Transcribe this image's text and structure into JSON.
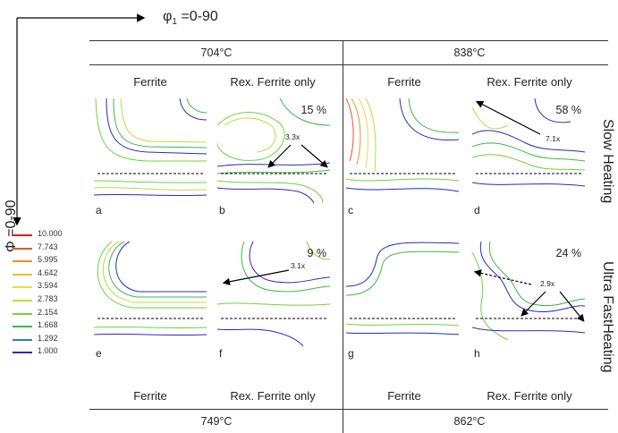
{
  "axes": {
    "phi1_label": "φ",
    "phi1_sub": "1",
    "phi1_range": " =0-90",
    "Phi_label": "Φ =0-90"
  },
  "top_temps": [
    "704°C",
    "838°C"
  ],
  "bottom_temps": [
    "749°C",
    "862°C"
  ],
  "column_headers": [
    "Ferrite",
    "Rex. Ferrite only",
    "Ferrite",
    "Rex. Ferrite only"
  ],
  "row_labels": [
    "Slow Heating",
    "Ultra FastHeating"
  ],
  "panels": [
    {
      "letter": "a",
      "percent": "",
      "ratio": ""
    },
    {
      "letter": "b",
      "percent": "15 %",
      "ratio": "3.3x"
    },
    {
      "letter": "c",
      "percent": "",
      "ratio": ""
    },
    {
      "letter": "d",
      "percent": "58 %",
      "ratio": "7.1x"
    },
    {
      "letter": "e",
      "percent": "",
      "ratio": ""
    },
    {
      "letter": "f",
      "percent": "9 %",
      "ratio": "3.1x"
    },
    {
      "letter": "g",
      "percent": "",
      "ratio": ""
    },
    {
      "letter": "h",
      "percent": "24 %",
      "ratio": "2.9x"
    }
  ],
  "legend": [
    {
      "value": "10.000",
      "color": "#d62020"
    },
    {
      "value": "7.743",
      "color": "#e8532a"
    },
    {
      "value": "5.995",
      "color": "#f0902a"
    },
    {
      "value": "4.642",
      "color": "#f4b830"
    },
    {
      "value": "3.594",
      "color": "#e6de3a"
    },
    {
      "value": "2.783",
      "color": "#b8de3a"
    },
    {
      "value": "2.154",
      "color": "#6fd43a"
    },
    {
      "value": "1.668",
      "color": "#3cb84a"
    },
    {
      "value": "1.292",
      "color": "#2a8c8c"
    },
    {
      "value": "1.000",
      "color": "#2a2ab8"
    }
  ]
}
